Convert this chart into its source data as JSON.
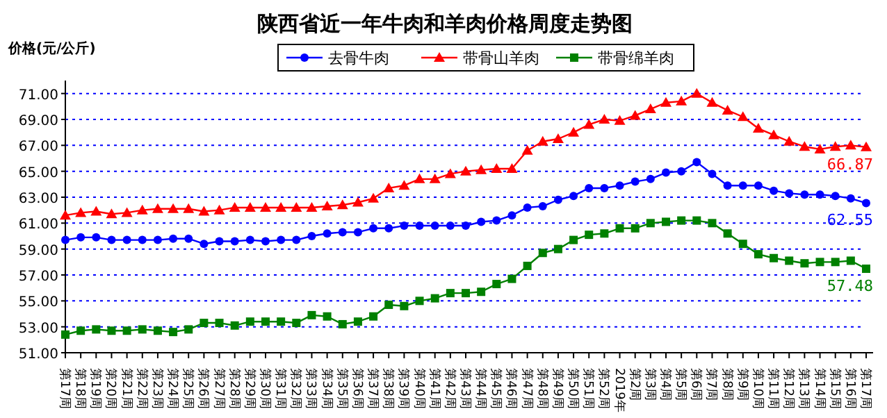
{
  "chart_data": {
    "type": "line",
    "title": "陕西省近一年牛肉和羊肉价格周度走势图",
    "ylabel": "价格(元/公斤)",
    "categories": [
      "第17周",
      "第18周",
      "第19周",
      "第20周",
      "第21周",
      "第22周",
      "第23周",
      "第24周",
      "第25周",
      "第26周",
      "第27周",
      "第28周",
      "第29周",
      "第30周",
      "第31周",
      "第32周",
      "第33周",
      "第34周",
      "第35周",
      "第36周",
      "第37周",
      "第38周",
      "第39周",
      "第40周",
      "第41周",
      "第42周",
      "第43周",
      "第44周",
      "第45周",
      "第46周",
      "第47周",
      "第48周",
      "第49周",
      "第50周",
      "第51周",
      "第52周",
      "2019年",
      "第2周",
      "第3周",
      "第4周",
      "第5周",
      "第6周",
      "第7周",
      "第8周",
      "第9周",
      "第10周",
      "第11周",
      "第12周",
      "第13周",
      "第14周",
      "第15周",
      "第16周",
      "第17周"
    ],
    "series": [
      {
        "name": "去骨牛肉",
        "color": "#0000ff",
        "marker": "circle",
        "values": [
          59.7,
          59.9,
          59.9,
          59.7,
          59.7,
          59.7,
          59.7,
          59.8,
          59.8,
          59.4,
          59.6,
          59.6,
          59.7,
          59.6,
          59.7,
          59.7,
          60.0,
          60.2,
          60.3,
          60.3,
          60.6,
          60.6,
          60.8,
          60.8,
          60.8,
          60.8,
          60.8,
          61.1,
          61.2,
          61.6,
          62.2,
          62.3,
          62.8,
          63.1,
          63.7,
          63.7,
          63.9,
          64.2,
          64.4,
          64.9,
          65.0,
          65.7,
          64.8,
          63.9,
          63.9,
          63.9,
          63.5,
          63.3,
          63.2,
          63.2,
          63.1,
          62.9,
          62.55
        ],
        "value_labels": [
          null,
          null,
          null,
          null,
          null,
          null,
          null,
          null,
          null,
          null,
          null,
          null,
          null,
          null,
          null,
          null,
          null,
          null,
          null,
          null,
          null,
          null,
          null,
          null,
          null,
          null,
          null,
          null,
          null,
          null,
          null,
          null,
          null,
          null,
          null,
          null,
          null,
          null,
          null,
          null,
          null,
          null,
          null,
          null,
          null,
          null,
          null,
          null,
          null,
          null,
          null,
          null,
          "62.55"
        ]
      },
      {
        "name": "带骨山羊肉",
        "color": "#ff0000",
        "marker": "triangle",
        "values": [
          61.6,
          61.8,
          61.9,
          61.7,
          61.8,
          62.0,
          62.1,
          62.1,
          62.1,
          61.9,
          62.0,
          62.2,
          62.2,
          62.2,
          62.2,
          62.2,
          62.2,
          62.3,
          62.4,
          62.6,
          62.9,
          63.7,
          63.9,
          64.4,
          64.4,
          64.8,
          65.0,
          65.1,
          65.2,
          65.2,
          66.6,
          67.3,
          67.5,
          68.0,
          68.6,
          69.0,
          68.9,
          69.3,
          69.8,
          70.3,
          70.4,
          71.0,
          70.3,
          69.7,
          69.2,
          68.3,
          67.8,
          67.3,
          66.9,
          66.7,
          66.9,
          67.0,
          66.87
        ],
        "value_labels": [
          null,
          null,
          null,
          null,
          null,
          null,
          null,
          null,
          null,
          null,
          null,
          null,
          null,
          null,
          null,
          null,
          null,
          null,
          null,
          null,
          null,
          null,
          null,
          null,
          null,
          null,
          null,
          null,
          null,
          null,
          null,
          null,
          null,
          null,
          null,
          null,
          null,
          null,
          null,
          null,
          null,
          null,
          null,
          null,
          null,
          null,
          null,
          null,
          null,
          null,
          null,
          null,
          "66.87"
        ]
      },
      {
        "name": "带骨绵羊肉",
        "color": "#008000",
        "marker": "square",
        "values": [
          52.4,
          52.7,
          52.8,
          52.7,
          52.7,
          52.8,
          52.7,
          52.6,
          52.8,
          53.3,
          53.3,
          53.1,
          53.4,
          53.4,
          53.4,
          53.3,
          53.9,
          53.8,
          53.2,
          53.4,
          53.8,
          54.7,
          54.6,
          55.0,
          55.2,
          55.6,
          55.6,
          55.7,
          56.3,
          56.7,
          57.7,
          58.7,
          59.0,
          59.7,
          60.1,
          60.2,
          60.6,
          60.6,
          61.0,
          61.1,
          61.2,
          61.2,
          61.0,
          60.2,
          59.4,
          58.6,
          58.3,
          58.1,
          57.9,
          58.0,
          58.0,
          58.1,
          57.48
        ],
        "value_labels": [
          null,
          null,
          null,
          null,
          null,
          null,
          null,
          null,
          null,
          null,
          null,
          null,
          null,
          null,
          null,
          null,
          null,
          null,
          null,
          null,
          null,
          null,
          null,
          null,
          null,
          null,
          null,
          null,
          null,
          null,
          null,
          null,
          null,
          null,
          null,
          null,
          null,
          null,
          null,
          null,
          null,
          null,
          null,
          null,
          null,
          null,
          null,
          null,
          null,
          null,
          null,
          null,
          "57.48"
        ]
      }
    ],
    "ylim": [
      51,
      72
    ],
    "yticks": [
      {
        "value": 51,
        "label": "51.00"
      },
      {
        "value": 53,
        "label": "53.00"
      },
      {
        "value": 55,
        "label": "55.00"
      },
      {
        "value": 57,
        "label": "57.00"
      },
      {
        "value": 59,
        "label": "59.00"
      },
      {
        "value": 61,
        "label": "61.00"
      },
      {
        "value": 63,
        "label": "63.00"
      },
      {
        "value": 65,
        "label": "65.00"
      },
      {
        "value": 67,
        "label": "67.00"
      },
      {
        "value": 69,
        "label": "69.00"
      },
      {
        "value": 71,
        "label": "71.00"
      }
    ],
    "grid": "y",
    "legend": "top",
    "line_style": "solid"
  }
}
